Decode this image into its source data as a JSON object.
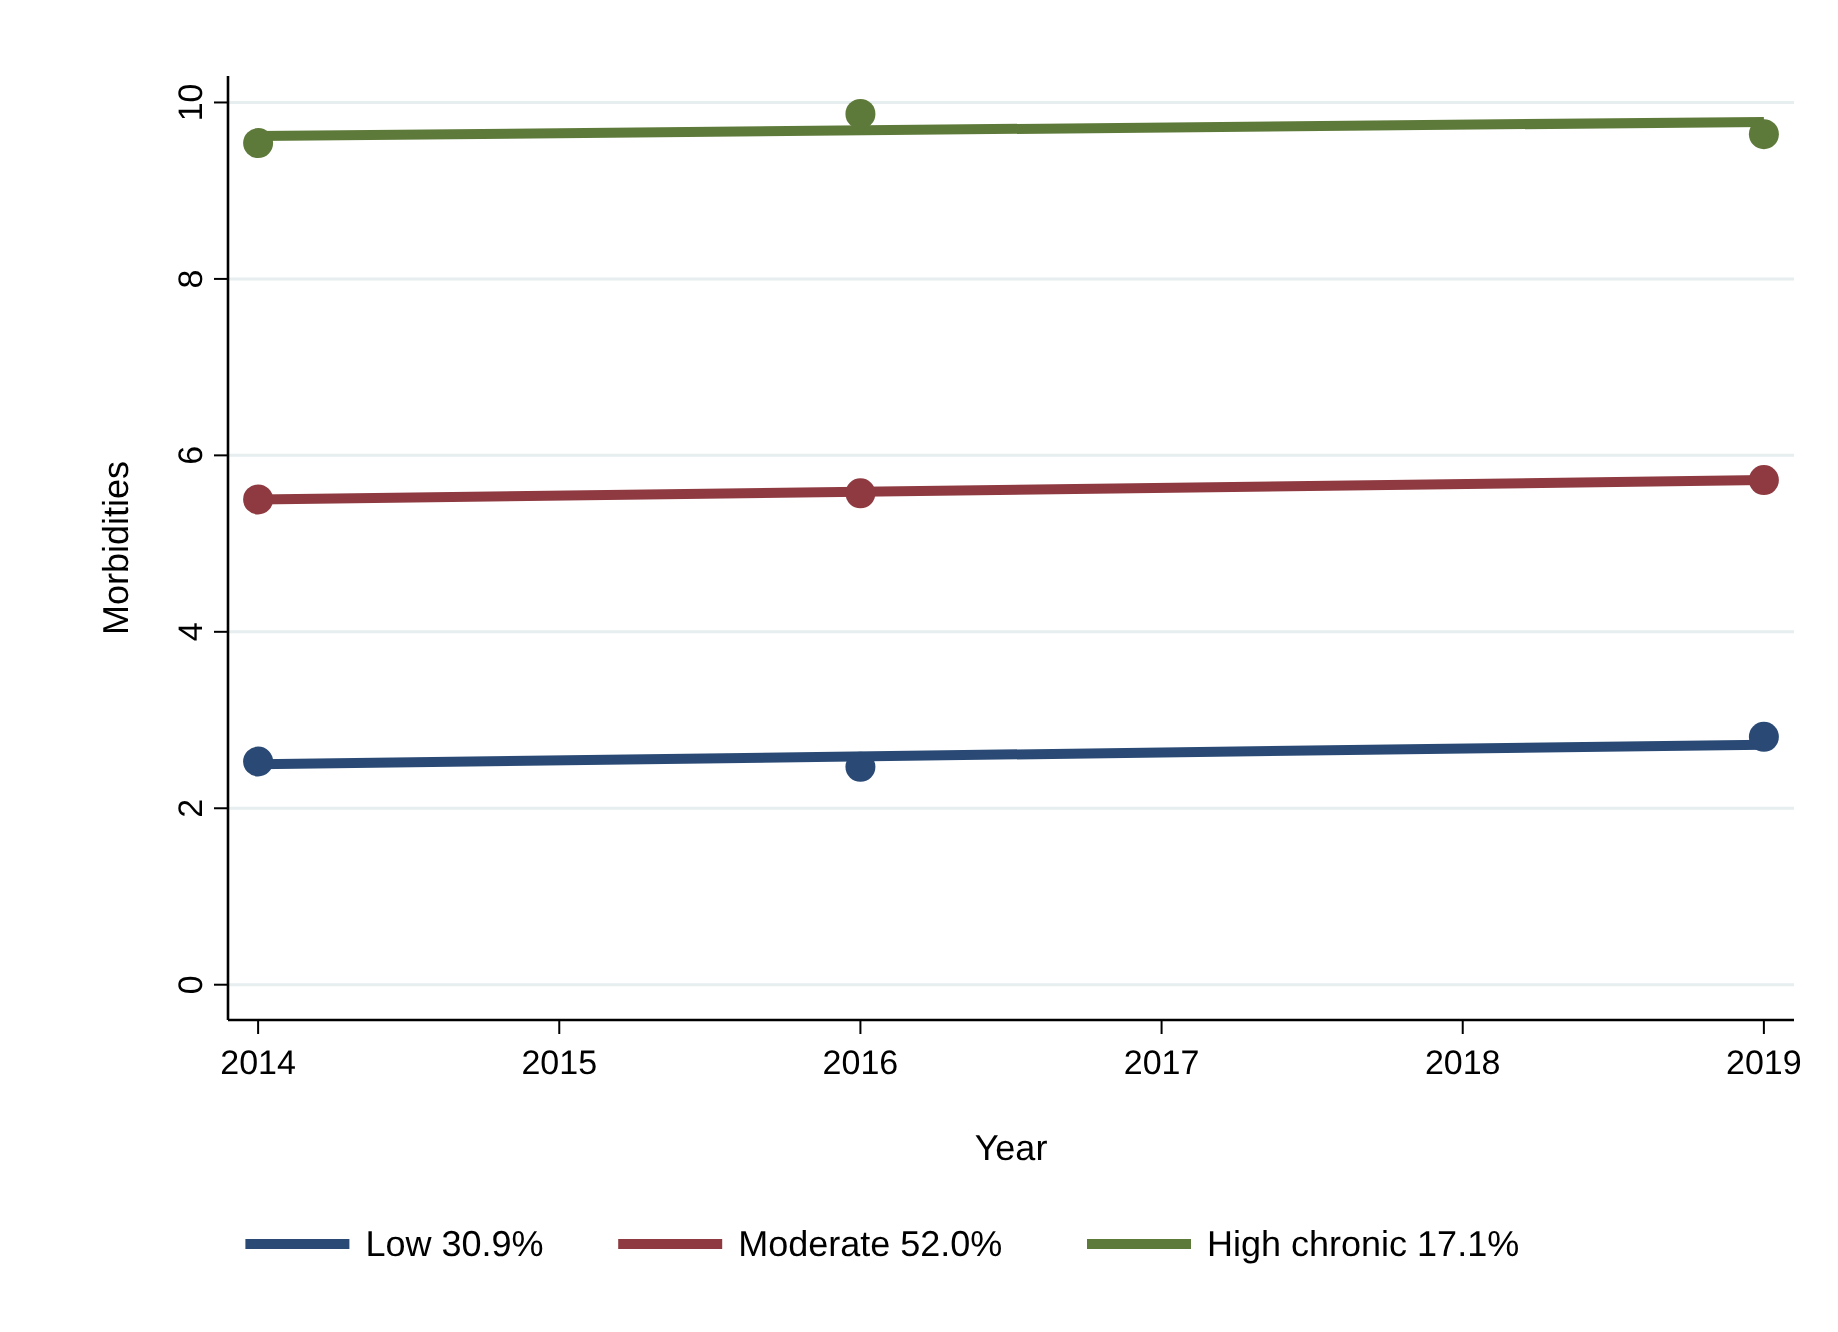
{
  "chart_data": {
    "type": "line",
    "xlabel": "Year",
    "ylabel": "Morbidities",
    "xlim": [
      2013.9,
      2019.1
    ],
    "xticks": [
      2014,
      2015,
      2016,
      2017,
      2018,
      2019
    ],
    "ylim": [
      -0.4,
      10.3
    ],
    "yticks": [
      0,
      2,
      4,
      6,
      8,
      10
    ],
    "grid": "y",
    "legend": "bottom",
    "series": [
      {
        "name": "Low 30.9%",
        "color": "#2a4a75",
        "marker": "none",
        "x": [
          2014,
          2019
        ],
        "values": [
          2.5,
          2.72
        ]
      },
      {
        "name": "Moderate 52.0%",
        "color": "#8e3a40",
        "marker": "none",
        "x": [
          2014,
          2019
        ],
        "values": [
          5.5,
          5.72
        ]
      },
      {
        "name": "High chronic 17.1%",
        "color": "#5e7a3a",
        "marker": "none",
        "x": [
          2014,
          2019
        ],
        "values": [
          9.62,
          9.78
        ]
      },
      {
        "color": "#2a4a75",
        "type": "scatter",
        "marker": "circle",
        "x": [
          2014,
          2016,
          2019
        ],
        "values": [
          2.53,
          2.47,
          2.81
        ]
      },
      {
        "color": "#8e3a40",
        "type": "scatter",
        "marker": "circle",
        "x": [
          2014,
          2016,
          2019
        ],
        "values": [
          5.5,
          5.57,
          5.72
        ]
      },
      {
        "color": "#5e7a3a",
        "type": "scatter",
        "marker": "circle",
        "x": [
          2014,
          2016,
          2019
        ],
        "values": [
          9.54,
          9.87,
          9.64
        ]
      }
    ]
  }
}
